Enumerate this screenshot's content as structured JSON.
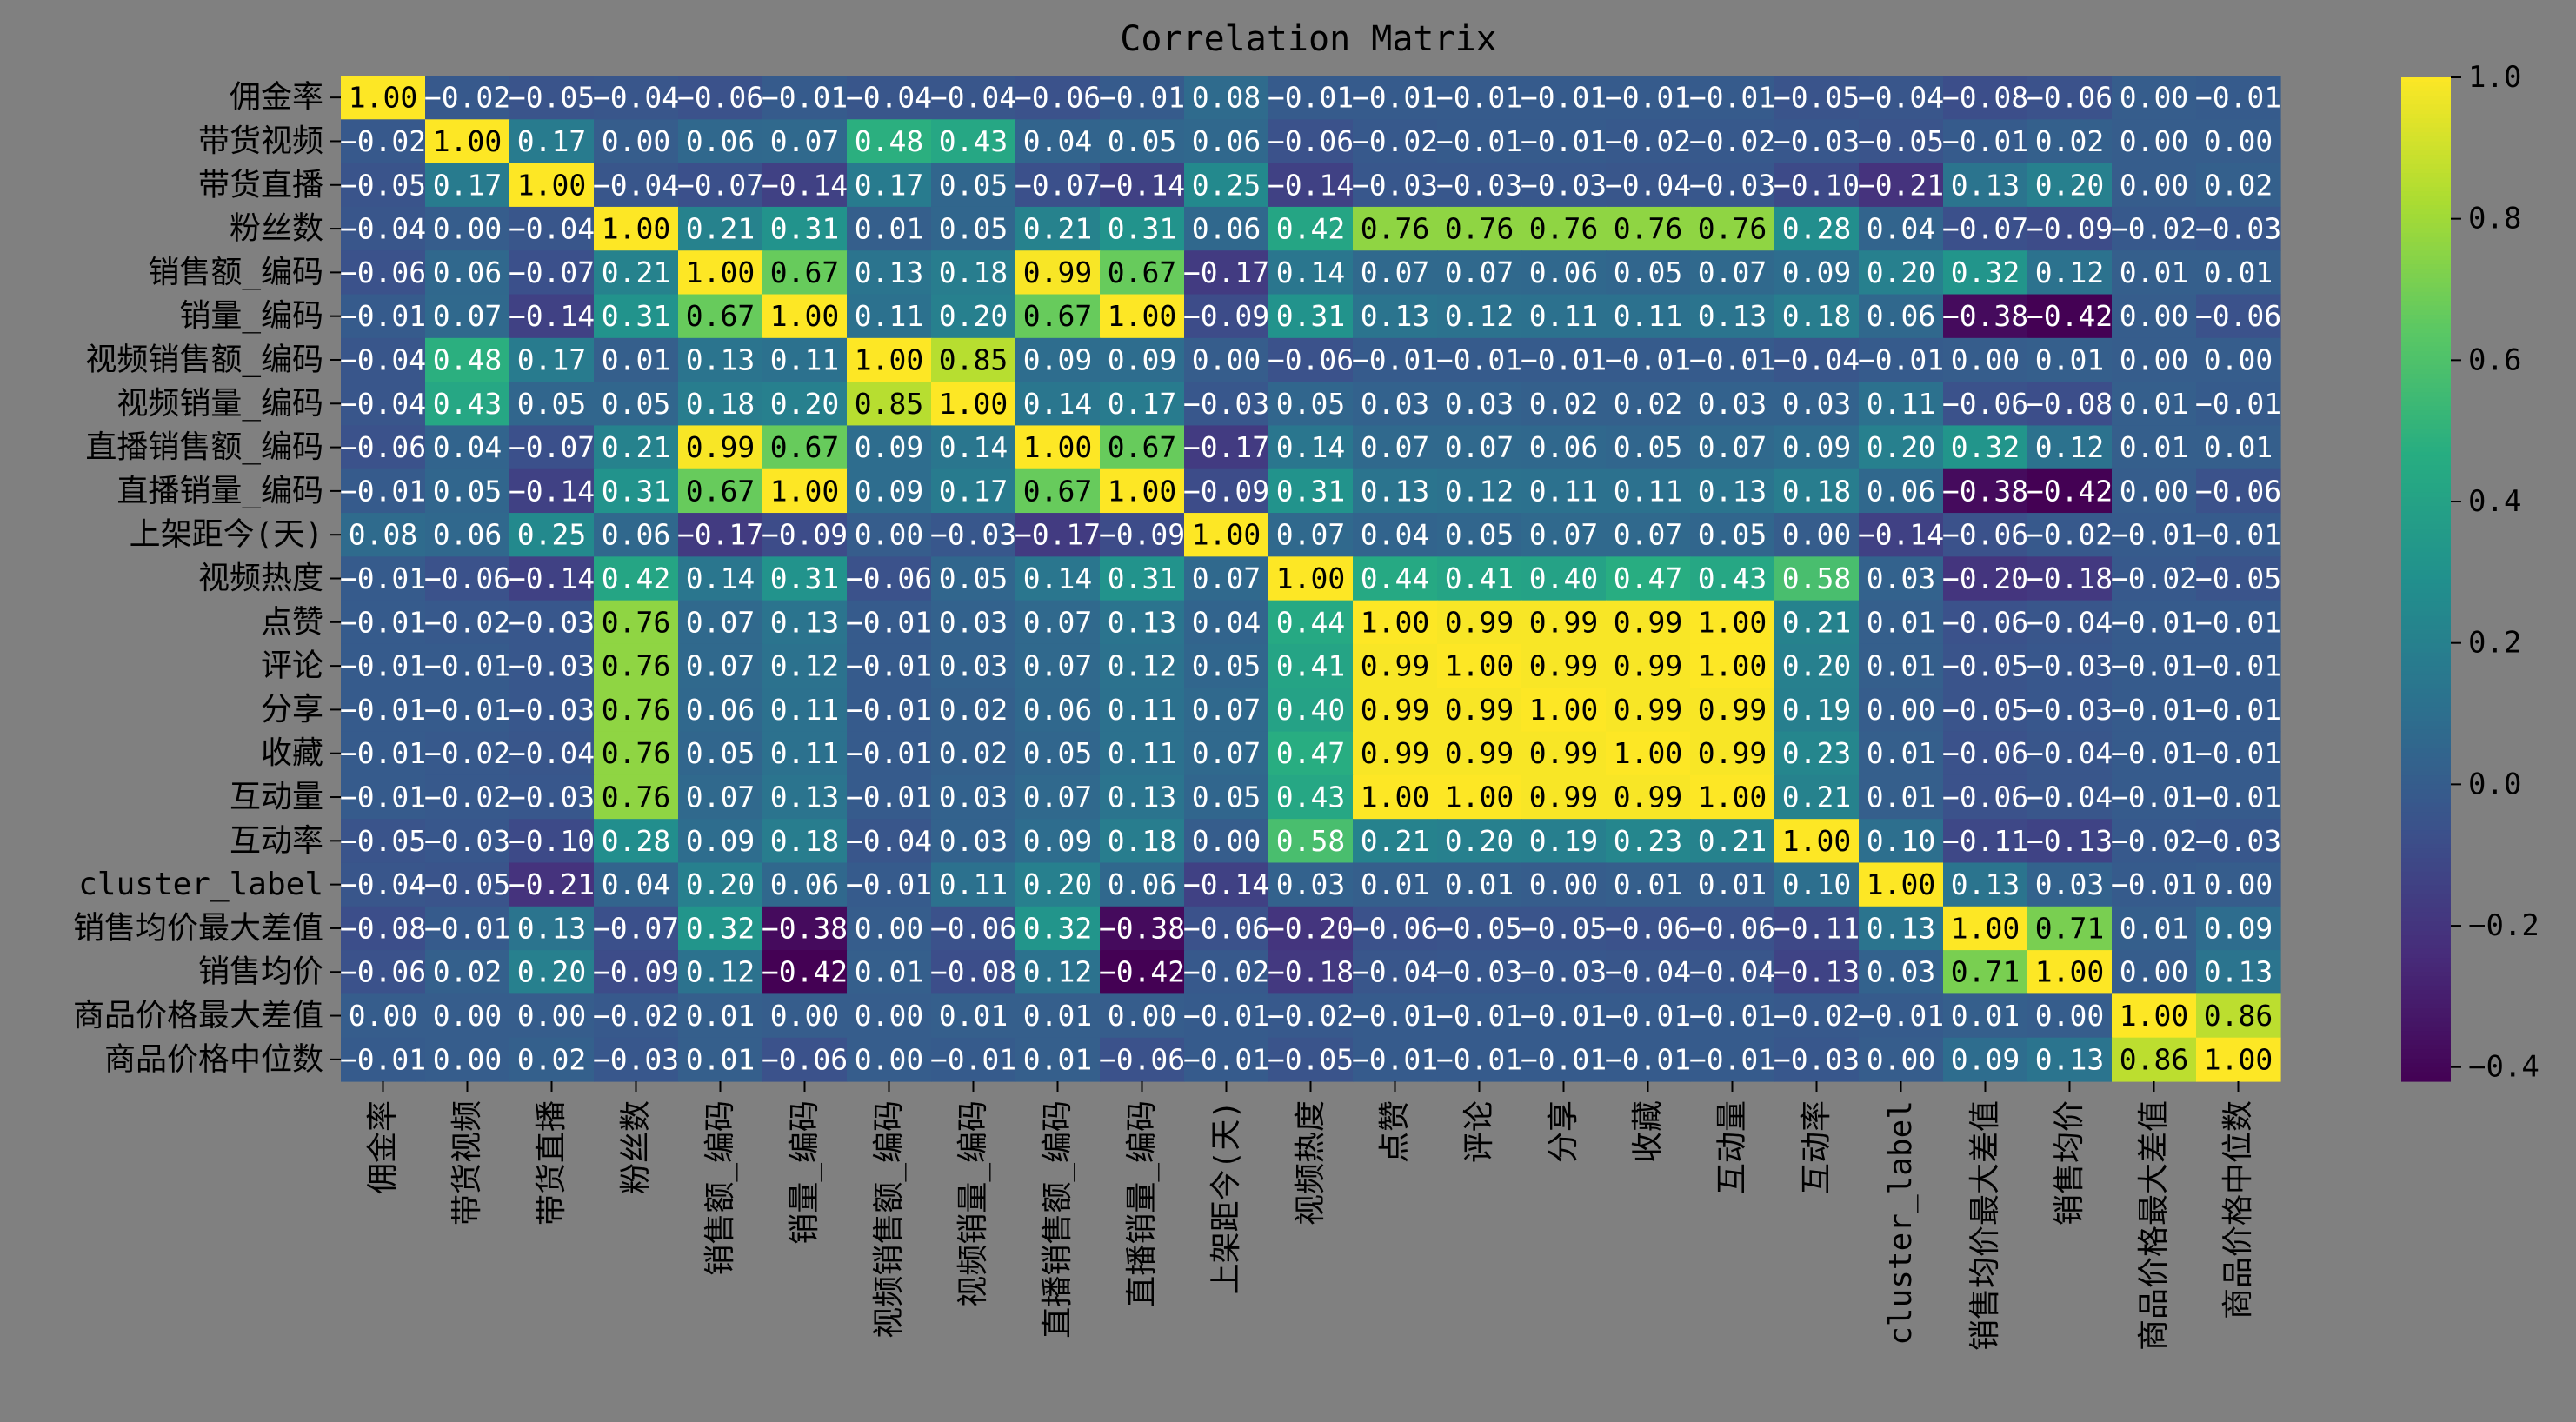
{
  "chart_data": {
    "type": "heatmap",
    "title": "Correlation Matrix",
    "labels": [
      "佣金率",
      "带货视频",
      "带货直播",
      "粉丝数",
      "销售额_编码",
      "销量_编码",
      "视频销售额_编码",
      "视频销量_编码",
      "直播销售额_编码",
      "直播销量_编码",
      "上架距今(天)",
      "视频热度",
      "点赞",
      "评论",
      "分享",
      "收藏",
      "互动量",
      "互动率",
      "cluster_label",
      "销售均价最大差值",
      "销售均价",
      "商品价格最大差值",
      "商品价格中位数"
    ],
    "values": [
      [
        1.0,
        -0.02,
        -0.05,
        -0.04,
        -0.06,
        -0.01,
        -0.04,
        -0.04,
        -0.06,
        -0.01,
        0.08,
        -0.01,
        -0.01,
        -0.01,
        -0.01,
        -0.01,
        -0.01,
        -0.05,
        -0.04,
        -0.08,
        -0.06,
        -0.0,
        -0.01
      ],
      [
        -0.02,
        1.0,
        0.17,
        -0.0,
        0.06,
        0.07,
        0.48,
        0.43,
        0.04,
        0.05,
        0.06,
        -0.06,
        -0.02,
        -0.01,
        -0.01,
        -0.02,
        -0.02,
        -0.03,
        -0.05,
        -0.01,
        0.02,
        -0.0,
        -0.0
      ],
      [
        -0.05,
        0.17,
        1.0,
        -0.04,
        -0.07,
        -0.14,
        0.17,
        0.05,
        -0.07,
        -0.14,
        0.25,
        -0.14,
        -0.03,
        -0.03,
        -0.03,
        -0.04,
        -0.03,
        -0.1,
        -0.21,
        0.13,
        0.2,
        -0.0,
        0.02
      ],
      [
        -0.04,
        -0.0,
        -0.04,
        1.0,
        0.21,
        0.31,
        0.01,
        0.05,
        0.21,
        0.31,
        0.06,
        0.42,
        0.76,
        0.76,
        0.76,
        0.76,
        0.76,
        0.28,
        0.04,
        -0.07,
        -0.09,
        -0.02,
        -0.03
      ],
      [
        -0.06,
        0.06,
        -0.07,
        0.21,
        1.0,
        0.67,
        0.13,
        0.18,
        0.99,
        0.67,
        -0.17,
        0.14,
        0.07,
        0.07,
        0.06,
        0.05,
        0.07,
        0.09,
        0.2,
        0.32,
        0.12,
        0.01,
        0.01
      ],
      [
        -0.01,
        0.07,
        -0.14,
        0.31,
        0.67,
        1.0,
        0.11,
        0.2,
        0.67,
        1.0,
        -0.09,
        0.31,
        0.13,
        0.12,
        0.11,
        0.11,
        0.13,
        0.18,
        0.06,
        -0.38,
        -0.42,
        -0.0,
        -0.06
      ],
      [
        -0.04,
        0.48,
        0.17,
        0.01,
        0.13,
        0.11,
        1.0,
        0.85,
        0.09,
        0.09,
        0.0,
        -0.06,
        -0.01,
        -0.01,
        -0.01,
        -0.01,
        -0.01,
        -0.04,
        -0.01,
        0.0,
        0.01,
        0.0,
        -0.0
      ],
      [
        -0.04,
        0.43,
        0.05,
        0.05,
        0.18,
        0.2,
        0.85,
        1.0,
        0.14,
        0.17,
        -0.03,
        0.05,
        0.03,
        0.03,
        0.02,
        0.02,
        0.03,
        0.03,
        0.11,
        -0.06,
        -0.08,
        0.01,
        -0.01
      ],
      [
        -0.06,
        0.04,
        -0.07,
        0.21,
        0.99,
        0.67,
        0.09,
        0.14,
        1.0,
        0.67,
        -0.17,
        0.14,
        0.07,
        0.07,
        0.06,
        0.05,
        0.07,
        0.09,
        0.2,
        0.32,
        0.12,
        0.01,
        0.01
      ],
      [
        -0.01,
        0.05,
        -0.14,
        0.31,
        0.67,
        1.0,
        0.09,
        0.17,
        0.67,
        1.0,
        -0.09,
        0.31,
        0.13,
        0.12,
        0.11,
        0.11,
        0.13,
        0.18,
        0.06,
        -0.38,
        -0.42,
        -0.0,
        -0.06
      ],
      [
        0.08,
        0.06,
        0.25,
        0.06,
        -0.17,
        -0.09,
        0.0,
        -0.03,
        -0.17,
        -0.09,
        1.0,
        0.07,
        0.04,
        0.05,
        0.07,
        0.07,
        0.05,
        -0.0,
        -0.14,
        -0.06,
        -0.02,
        -0.01,
        -0.01
      ],
      [
        -0.01,
        -0.06,
        -0.14,
        0.42,
        0.14,
        0.31,
        -0.06,
        0.05,
        0.14,
        0.31,
        0.07,
        1.0,
        0.44,
        0.41,
        0.4,
        0.47,
        0.43,
        0.58,
        0.03,
        -0.2,
        -0.18,
        -0.02,
        -0.05
      ],
      [
        -0.01,
        -0.02,
        -0.03,
        0.76,
        0.07,
        0.13,
        -0.01,
        0.03,
        0.07,
        0.13,
        0.04,
        0.44,
        1.0,
        0.99,
        0.99,
        0.99,
        1.0,
        0.21,
        0.01,
        -0.06,
        -0.04,
        -0.01,
        -0.01
      ],
      [
        -0.01,
        -0.01,
        -0.03,
        0.76,
        0.07,
        0.12,
        -0.01,
        0.03,
        0.07,
        0.12,
        0.05,
        0.41,
        0.99,
        1.0,
        0.99,
        0.99,
        1.0,
        0.2,
        0.01,
        -0.05,
        -0.03,
        -0.01,
        -0.01
      ],
      [
        -0.01,
        -0.01,
        -0.03,
        0.76,
        0.06,
        0.11,
        -0.01,
        0.02,
        0.06,
        0.11,
        0.07,
        0.4,
        0.99,
        0.99,
        1.0,
        0.99,
        0.99,
        0.19,
        0.0,
        -0.05,
        -0.03,
        -0.01,
        -0.01
      ],
      [
        -0.01,
        -0.02,
        -0.04,
        0.76,
        0.05,
        0.11,
        -0.01,
        0.02,
        0.05,
        0.11,
        0.07,
        0.47,
        0.99,
        0.99,
        0.99,
        1.0,
        0.99,
        0.23,
        0.01,
        -0.06,
        -0.04,
        -0.01,
        -0.01
      ],
      [
        -0.01,
        -0.02,
        -0.03,
        0.76,
        0.07,
        0.13,
        -0.01,
        0.03,
        0.07,
        0.13,
        0.05,
        0.43,
        1.0,
        1.0,
        0.99,
        0.99,
        1.0,
        0.21,
        0.01,
        -0.06,
        -0.04,
        -0.01,
        -0.01
      ],
      [
        -0.05,
        -0.03,
        -0.1,
        0.28,
        0.09,
        0.18,
        -0.04,
        0.03,
        0.09,
        0.18,
        -0.0,
        0.58,
        0.21,
        0.2,
        0.19,
        0.23,
        0.21,
        1.0,
        0.1,
        -0.11,
        -0.13,
        -0.02,
        -0.03
      ],
      [
        -0.04,
        -0.05,
        -0.21,
        0.04,
        0.2,
        0.06,
        -0.01,
        0.11,
        0.2,
        0.06,
        -0.14,
        0.03,
        0.01,
        0.01,
        0.0,
        0.01,
        0.01,
        0.1,
        1.0,
        0.13,
        0.03,
        -0.01,
        -0.0
      ],
      [
        -0.08,
        -0.01,
        0.13,
        -0.07,
        0.32,
        -0.38,
        0.0,
        -0.06,
        0.32,
        -0.38,
        -0.06,
        -0.2,
        -0.06,
        -0.05,
        -0.05,
        -0.06,
        -0.06,
        -0.11,
        0.13,
        1.0,
        0.71,
        0.01,
        0.09
      ],
      [
        -0.06,
        0.02,
        0.2,
        -0.09,
        0.12,
        -0.42,
        0.01,
        -0.08,
        0.12,
        -0.42,
        -0.02,
        -0.18,
        -0.04,
        -0.03,
        -0.03,
        -0.04,
        -0.04,
        -0.13,
        0.03,
        0.71,
        1.0,
        0.0,
        0.13
      ],
      [
        -0.0,
        -0.0,
        -0.0,
        -0.02,
        0.01,
        -0.0,
        0.0,
        0.01,
        0.01,
        -0.0,
        -0.01,
        -0.02,
        -0.01,
        -0.01,
        -0.01,
        -0.01,
        -0.01,
        -0.02,
        -0.01,
        0.01,
        0.0,
        1.0,
        0.86
      ],
      [
        -0.01,
        -0.0,
        0.02,
        -0.03,
        0.01,
        -0.06,
        -0.0,
        -0.01,
        0.01,
        -0.06,
        -0.01,
        -0.05,
        -0.01,
        -0.01,
        -0.01,
        -0.01,
        -0.01,
        -0.03,
        -0.0,
        0.09,
        0.13,
        0.86,
        1.0
      ]
    ],
    "colormap": "viridis",
    "vmin": -0.42,
    "vmax": 1.0,
    "colorbar_ticks": [
      "1.0",
      "0.8",
      "0.6",
      "0.4",
      "0.2",
      "0.0",
      "−0.2",
      "−0.4"
    ],
    "colorbar_tick_values": [
      1.0,
      0.8,
      0.6,
      0.4,
      0.2,
      0.0,
      -0.2,
      -0.4
    ],
    "annotation_format": "2 decimals",
    "background_color": "#808080"
  }
}
